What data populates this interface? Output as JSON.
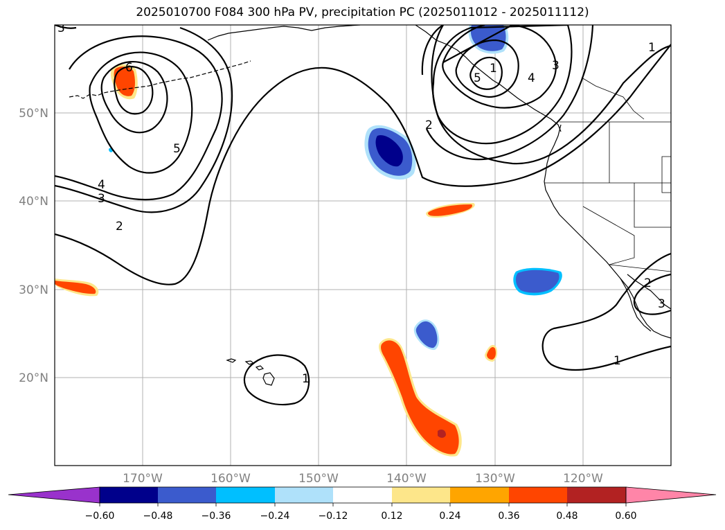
{
  "title": "2025010700 F084 300 hPa PV, precipitation PC (2025011012 - 2025011112)",
  "map": {
    "lon_labels": [
      "170°W",
      "160°W",
      "150°W",
      "140°W",
      "130°W",
      "120°W"
    ],
    "lat_labels": [
      "50°N",
      "40°N",
      "30°N",
      "20°N"
    ]
  },
  "contour_labels": [
    "6",
    "5",
    "4",
    "3",
    "2",
    "1",
    "2",
    "3",
    "4",
    "5",
    "1",
    "2",
    "3",
    "1",
    "1",
    "3"
  ],
  "colorbar": {
    "ticks": [
      "−0.60",
      "−0.48",
      "−0.36",
      "−0.24",
      "−0.12",
      "0.12",
      "0.24",
      "0.36",
      "0.48",
      "0.60"
    ],
    "colors": [
      "#9932cc",
      "#00008b",
      "#3b5bcd",
      "#00bfff",
      "#afe1fa",
      "#ffffff",
      "#fde68a",
      "#ffa500",
      "#ff4500",
      "#b22222",
      "#ff85a8"
    ]
  }
}
